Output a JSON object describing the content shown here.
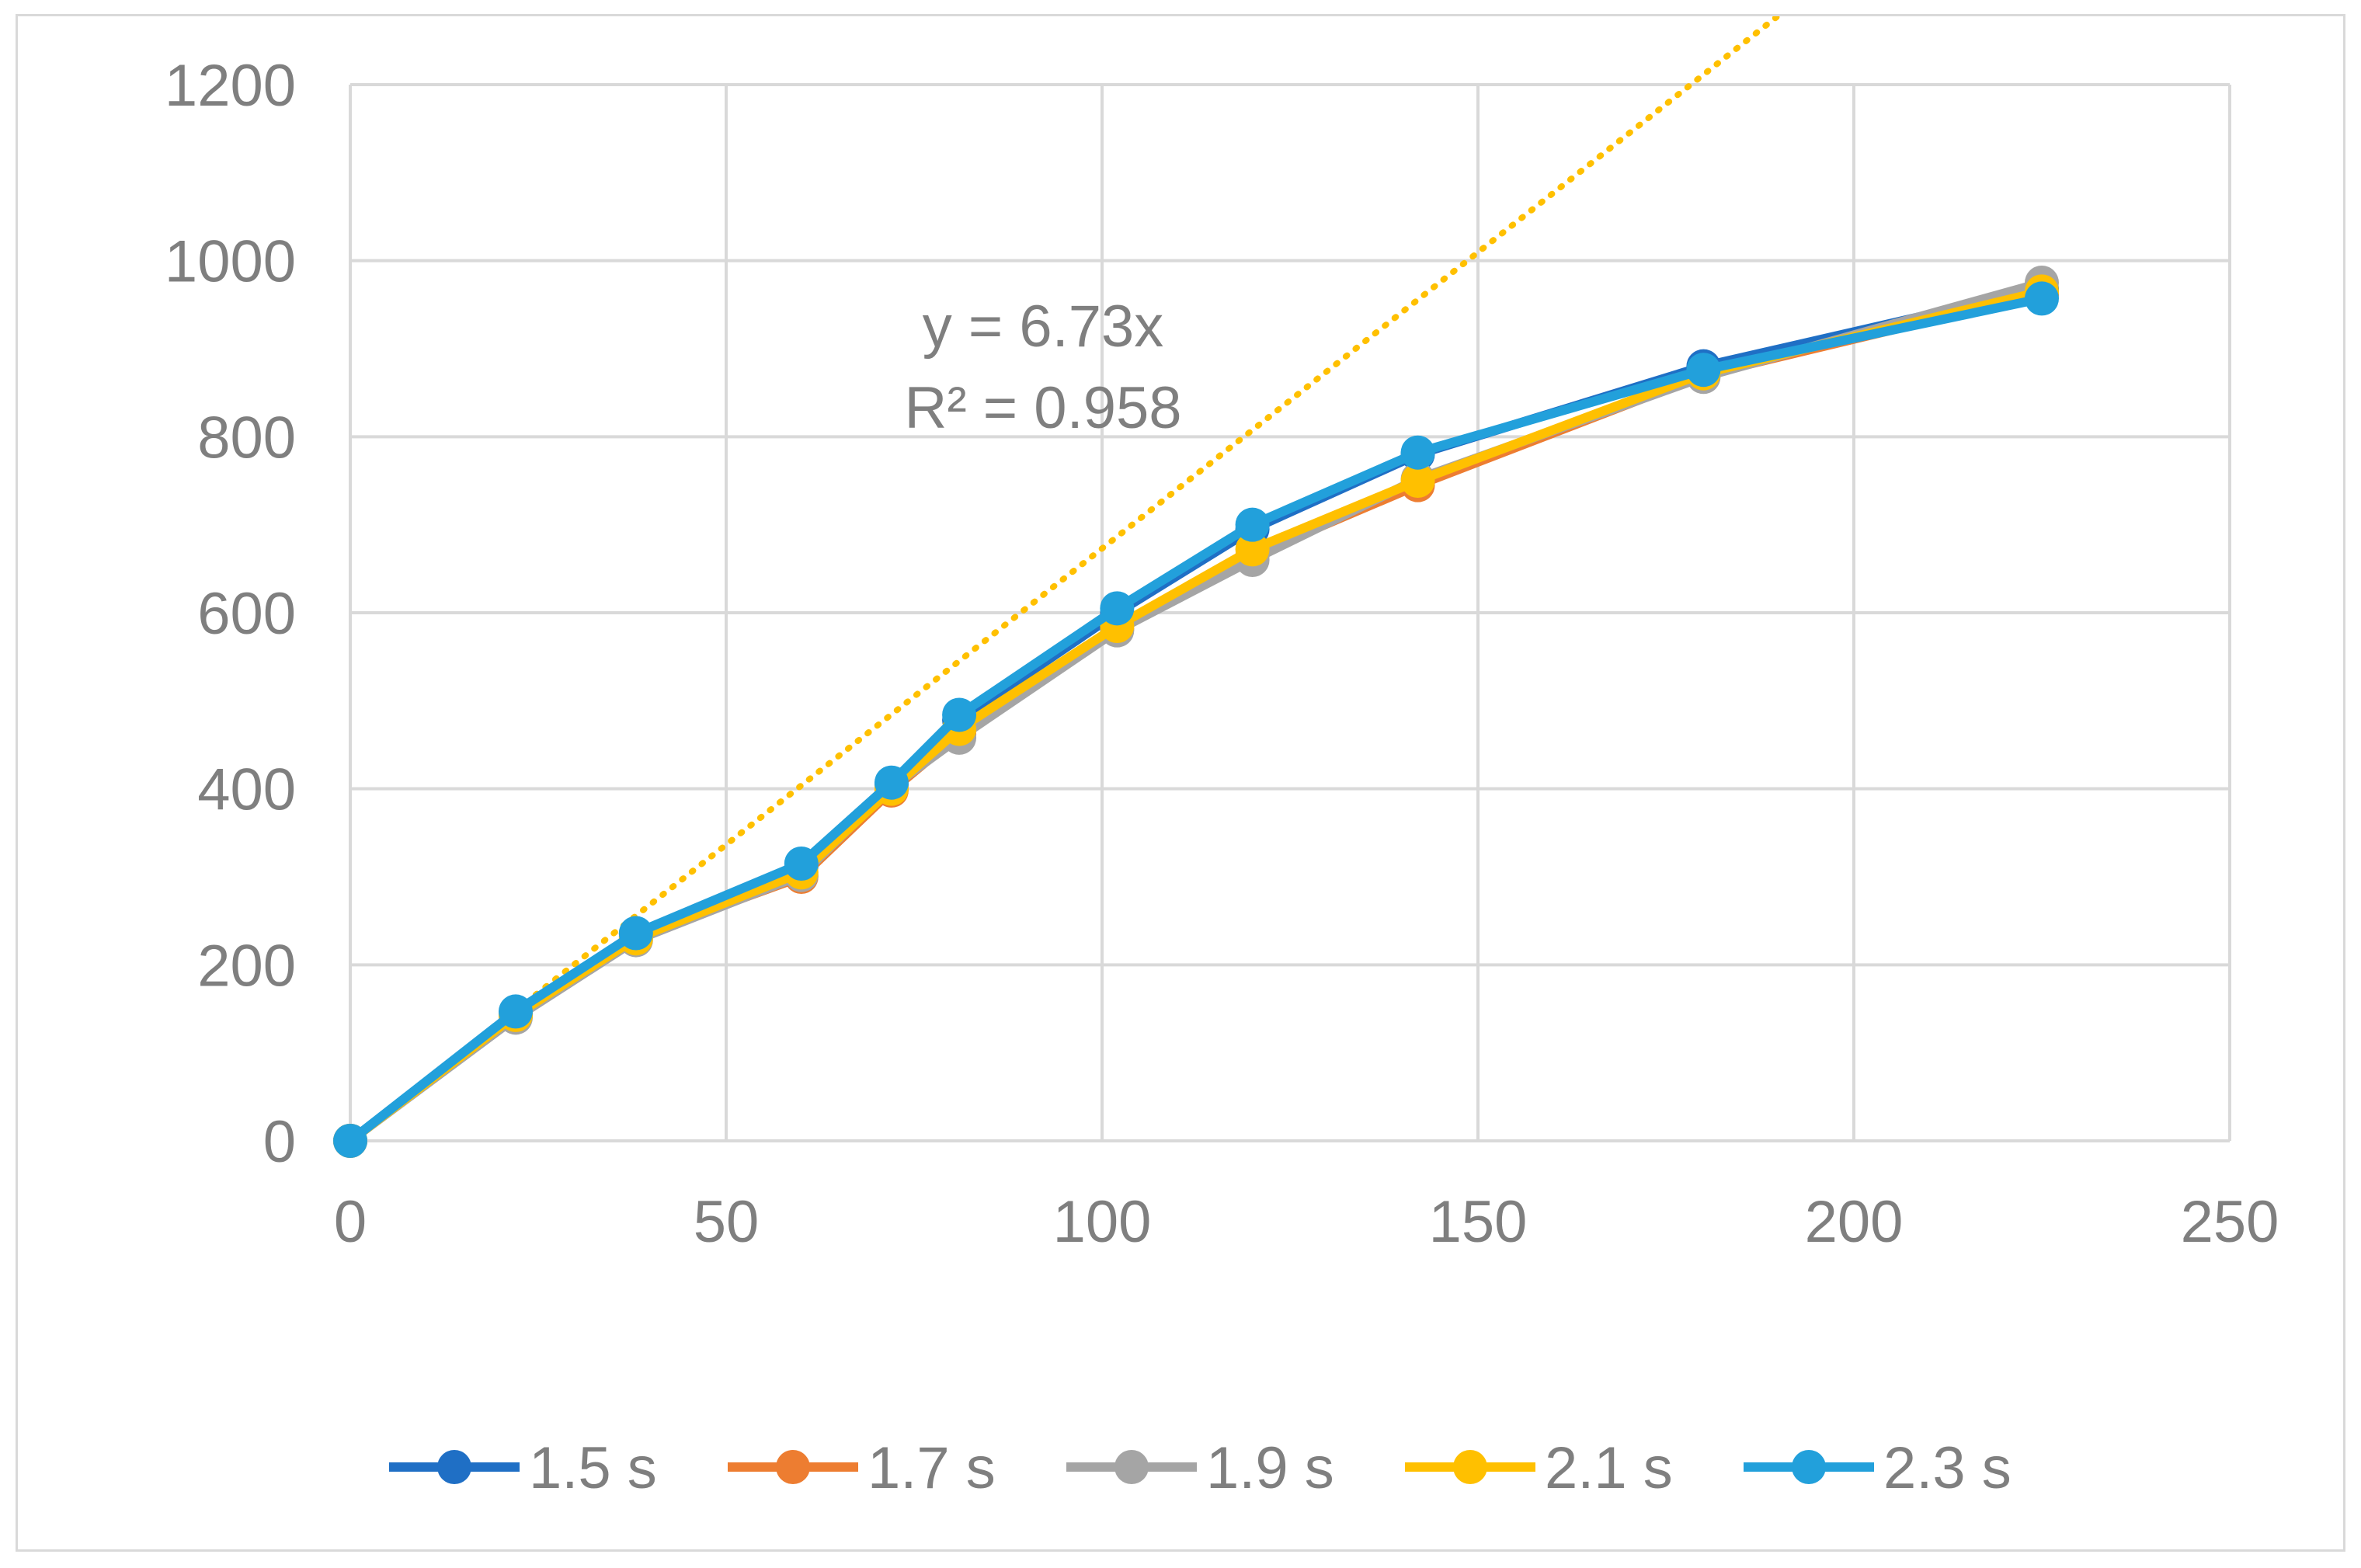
{
  "chart_data": {
    "type": "line",
    "title": "",
    "xlabel": "",
    "ylabel": "",
    "xlim": [
      0,
      250
    ],
    "ylim": [
      0,
      1200
    ],
    "x_ticks": [
      "0",
      "50",
      "100",
      "150",
      "200",
      "250"
    ],
    "y_ticks": [
      "0",
      "200",
      "400",
      "600",
      "800",
      "1000",
      "1200"
    ],
    "grid": true,
    "legend_position": "bottom",
    "series": [
      {
        "name": "1.5 s",
        "color": "#1f6fc5",
        "points": [
          [
            0,
            0
          ],
          [
            22,
            145
          ],
          [
            38,
            235
          ],
          [
            60,
            312
          ],
          [
            72,
            405
          ],
          [
            81,
            478
          ],
          [
            102,
            600
          ],
          [
            120,
            695
          ],
          [
            142,
            780
          ],
          [
            180,
            880
          ],
          [
            225,
            968
          ]
        ]
      },
      {
        "name": "1.7 s",
        "color": "#ed7d31",
        "points": [
          [
            0,
            0
          ],
          [
            22,
            142
          ],
          [
            38,
            232
          ],
          [
            60,
            300
          ],
          [
            72,
            398
          ],
          [
            81,
            462
          ],
          [
            102,
            582
          ],
          [
            120,
            665
          ],
          [
            142,
            745
          ],
          [
            180,
            870
          ],
          [
            225,
            962
          ]
        ]
      },
      {
        "name": "1.9 s",
        "color": "#a5a5a5",
        "points": [
          [
            0,
            0
          ],
          [
            22,
            140
          ],
          [
            38,
            228
          ],
          [
            60,
            302
          ],
          [
            72,
            402
          ],
          [
            81,
            458
          ],
          [
            102,
            580
          ],
          [
            120,
            660
          ],
          [
            142,
            752
          ],
          [
            180,
            868
          ],
          [
            225,
            975
          ]
        ]
      },
      {
        "name": "2.1 s",
        "color": "#ffc000",
        "points": [
          [
            0,
            0
          ],
          [
            22,
            143
          ],
          [
            38,
            230
          ],
          [
            60,
            305
          ],
          [
            72,
            400
          ],
          [
            81,
            468
          ],
          [
            102,
            585
          ],
          [
            120,
            672
          ],
          [
            142,
            750
          ],
          [
            180,
            872
          ],
          [
            225,
            965
          ]
        ]
      },
      {
        "name": "2.3 s",
        "color": "#22a0db",
        "points": [
          [
            0,
            0
          ],
          [
            22,
            147
          ],
          [
            38,
            236
          ],
          [
            60,
            315
          ],
          [
            72,
            407
          ],
          [
            81,
            484
          ],
          [
            102,
            605
          ],
          [
            120,
            700
          ],
          [
            142,
            782
          ],
          [
            180,
            876
          ],
          [
            225,
            957
          ]
        ]
      }
    ],
    "trendline": {
      "type": "linear-through-origin",
      "slope": 6.73,
      "x_end": 225,
      "color": "#ffc000",
      "style": "dotted",
      "equation": "y = 6.73x",
      "r_squared": "R² = 0.958"
    }
  }
}
